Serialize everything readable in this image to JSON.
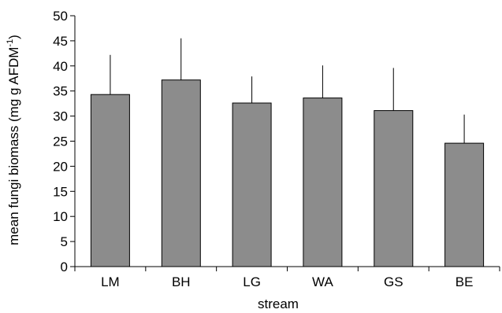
{
  "chart_data": {
    "type": "bar",
    "xlabel": "stream",
    "ylabel": {
      "main": "mean fungi biomass (mg g AFDM",
      "superscript": "-1",
      "close": ")"
    },
    "categories": [
      "LM",
      "BH",
      "LG",
      "WA",
      "GS",
      "BE"
    ],
    "values": [
      34.3,
      37.2,
      32.6,
      33.6,
      31.1,
      24.6
    ],
    "error_upper": [
      7.9,
      8.3,
      5.3,
      6.5,
      8.5,
      5.7
    ],
    "ylim": [
      0,
      50
    ],
    "yticks": [
      0,
      5,
      10,
      15,
      20,
      25,
      30,
      35,
      40,
      45,
      50
    ],
    "bar_color": "#8c8c8c",
    "grid": false,
    "legend": "none"
  }
}
